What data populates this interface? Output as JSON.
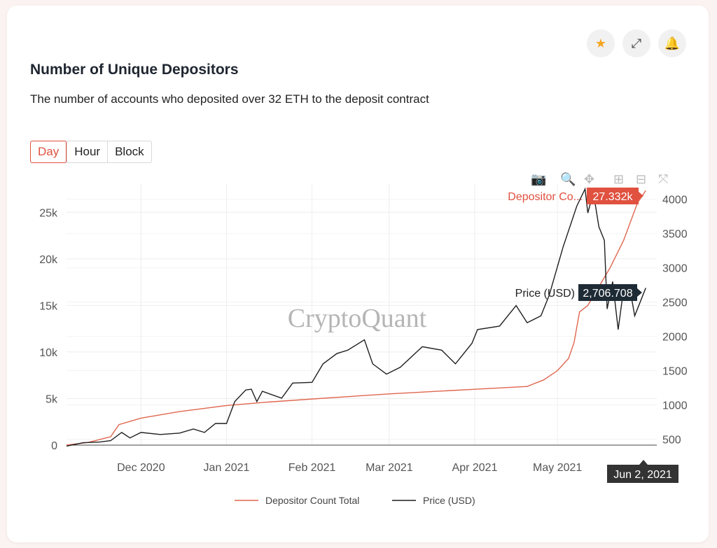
{
  "header": {
    "title": "Number of Unique Depositors",
    "description": "The number of accounts who deposited over 32 ETH to the deposit contract"
  },
  "actions": [
    {
      "name": "star-icon",
      "glyph": "★",
      "color": "#f5a623"
    },
    {
      "name": "fullscreen-icon",
      "glyph": "⤢",
      "color": "#555"
    },
    {
      "name": "bell-icon",
      "glyph": "🔔",
      "color": "#444"
    }
  ],
  "range_tabs": [
    "Day",
    "Hour",
    "Block"
  ],
  "active_tab": "Day",
  "modebar": [
    {
      "name": "camera-icon",
      "glyph": "📷"
    },
    {
      "name": "zoom-icon",
      "glyph": "🔍"
    },
    {
      "name": "pan-icon",
      "glyph": "✥"
    },
    {
      "name": "zoom-in-icon",
      "glyph": "⊞"
    },
    {
      "name": "zoom-out-icon",
      "glyph": "⊟"
    },
    {
      "name": "autoscale-icon",
      "glyph": "⤧"
    }
  ],
  "watermark": "CryptoQuant",
  "chart_data": {
    "type": "line",
    "x_ticks": [
      "Dec 2020",
      "Jan 2021",
      "Feb 2021",
      "Mar 2021",
      "Apr 2021",
      "May 2021"
    ],
    "x_tick_dates": [
      "2020-12-01",
      "2021-01-01",
      "2021-02-01",
      "2021-03-01",
      "2021-04-01",
      "2021-05-01"
    ],
    "xlim": [
      "2020-11-04",
      "2021-06-06"
    ],
    "y_left": {
      "ticks": [
        0,
        5000,
        10000,
        15000,
        20000,
        25000
      ],
      "tick_labels": [
        "0",
        "5k",
        "10k",
        "15k",
        "20k",
        "25k"
      ],
      "range": [
        0,
        27500
      ]
    },
    "y_right": {
      "ticks": [
        500,
        1000,
        1500,
        2000,
        2500,
        3000,
        3500,
        4000
      ],
      "tick_labels": [
        "500",
        "1000",
        "1500",
        "2000",
        "2500",
        "3000",
        "3500",
        "4000"
      ],
      "range": [
        415,
        4150
      ]
    },
    "grid": true,
    "legend_position": "bottom",
    "series": [
      {
        "name": "Depositor Count Total",
        "axis": "left",
        "color": "#e0664f",
        "points": [
          [
            "2020-11-04",
            0
          ],
          [
            "2020-11-12",
            300
          ],
          [
            "2020-11-20",
            900
          ],
          [
            "2020-11-23",
            2200
          ],
          [
            "2020-12-01",
            2900
          ],
          [
            "2020-12-15",
            3600
          ],
          [
            "2021-01-01",
            4250
          ],
          [
            "2021-01-15",
            4600
          ],
          [
            "2021-02-01",
            4950
          ],
          [
            "2021-03-01",
            5500
          ],
          [
            "2021-04-01",
            6000
          ],
          [
            "2021-04-20",
            6300
          ],
          [
            "2021-04-26",
            7000
          ],
          [
            "2021-05-01",
            8000
          ],
          [
            "2021-05-05",
            9300
          ],
          [
            "2021-05-07",
            11000
          ],
          [
            "2021-05-09",
            14300
          ],
          [
            "2021-05-12",
            15000
          ],
          [
            "2021-05-15",
            16500
          ],
          [
            "2021-05-20",
            19000
          ],
          [
            "2021-05-25",
            22000
          ],
          [
            "2021-05-30",
            26000
          ],
          [
            "2021-06-02",
            27332
          ]
        ]
      },
      {
        "name": "Price (USD)",
        "axis": "right",
        "color": "#1f1f1f",
        "points": [
          [
            "2020-11-04",
            400
          ],
          [
            "2020-11-10",
            450
          ],
          [
            "2020-11-16",
            460
          ],
          [
            "2020-11-20",
            480
          ],
          [
            "2020-11-24",
            600
          ],
          [
            "2020-11-27",
            520
          ],
          [
            "2020-12-01",
            600
          ],
          [
            "2020-12-08",
            570
          ],
          [
            "2020-12-15",
            590
          ],
          [
            "2020-12-20",
            650
          ],
          [
            "2020-12-24",
            600
          ],
          [
            "2020-12-28",
            730
          ],
          [
            "2021-01-01",
            730
          ],
          [
            "2021-01-04",
            1050
          ],
          [
            "2021-01-08",
            1220
          ],
          [
            "2021-01-10",
            1230
          ],
          [
            "2021-01-12",
            1050
          ],
          [
            "2021-01-14",
            1200
          ],
          [
            "2021-01-21",
            1100
          ],
          [
            "2021-01-25",
            1320
          ],
          [
            "2021-02-01",
            1330
          ],
          [
            "2021-02-05",
            1600
          ],
          [
            "2021-02-10",
            1750
          ],
          [
            "2021-02-14",
            1800
          ],
          [
            "2021-02-20",
            1950
          ],
          [
            "2021-02-23",
            1600
          ],
          [
            "2021-02-28",
            1450
          ],
          [
            "2021-03-05",
            1550
          ],
          [
            "2021-03-13",
            1850
          ],
          [
            "2021-03-20",
            1800
          ],
          [
            "2021-03-25",
            1600
          ],
          [
            "2021-03-31",
            1900
          ],
          [
            "2021-04-02",
            2100
          ],
          [
            "2021-04-10",
            2150
          ],
          [
            "2021-04-16",
            2450
          ],
          [
            "2021-04-20",
            2200
          ],
          [
            "2021-04-25",
            2300
          ],
          [
            "2021-04-28",
            2600
          ],
          [
            "2021-05-03",
            3300
          ],
          [
            "2021-05-08",
            3900
          ],
          [
            "2021-05-11",
            4150
          ],
          [
            "2021-05-12",
            3800
          ],
          [
            "2021-05-14",
            4100
          ],
          [
            "2021-05-16",
            3600
          ],
          [
            "2021-05-18",
            3400
          ],
          [
            "2021-05-19",
            2400
          ],
          [
            "2021-05-21",
            2800
          ],
          [
            "2021-05-23",
            2100
          ],
          [
            "2021-05-25",
            2700
          ],
          [
            "2021-05-27",
            2750
          ],
          [
            "2021-05-29",
            2300
          ],
          [
            "2021-06-02",
            2706.708
          ]
        ]
      }
    ],
    "hover": {
      "date": "Jun 2, 2021",
      "depositor_label": "Depositor Co...",
      "depositor_value": "27.332k",
      "price_label": "Price (USD)",
      "price_value": "2,706.708"
    }
  }
}
